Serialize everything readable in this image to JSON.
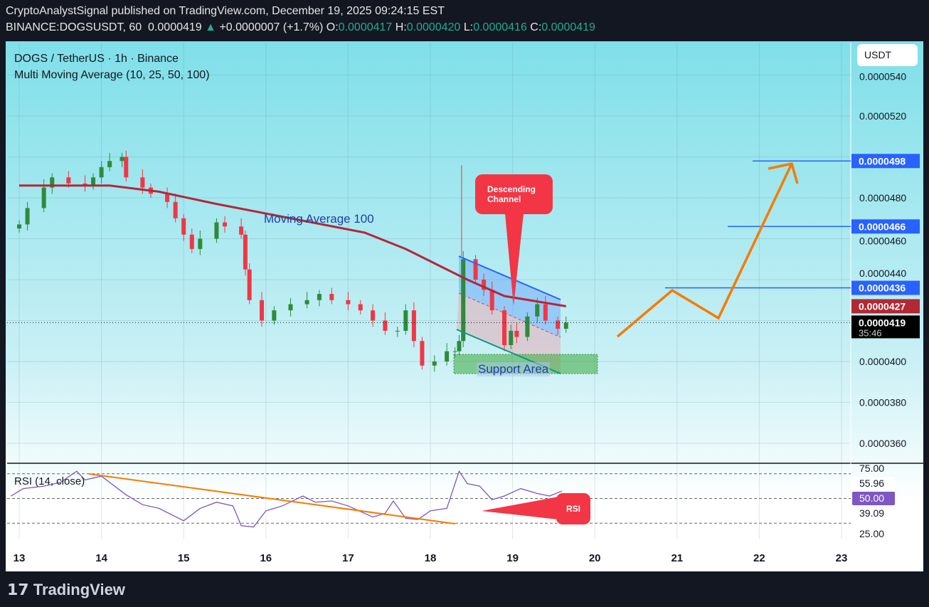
{
  "header": {
    "publisher": "CryptoAnalystSignal published on TradingView.com, December 19, 2025 09:24:15 EST",
    "symbol": "BINANCE:DOGSUSDT, 60",
    "last": "0.0000419",
    "change": "+0.0000007 (+1.7%)",
    "o_label": "O:",
    "o": "0.0000417",
    "h_label": "H:",
    "h": "0.0000420",
    "l_label": "L:",
    "l": "0.0000416",
    "c_label": "C:",
    "c": "0.0000419"
  },
  "legend": {
    "title": "DOGS / TetherUS · 1h · Binance",
    "indicator": "Multi Moving Average (10, 25, 50, 100)",
    "rsi": "RSI (14, close)"
  },
  "price_axis": {
    "currency": "USDT",
    "ticks": [
      "0.0000540",
      "0.0000520",
      "0.0000480",
      "0.0000460",
      "0.0000440",
      "0.0000400",
      "0.0000380",
      "0.0000360"
    ],
    "tags": [
      {
        "text": "0.0000498",
        "color": "#2962ff"
      },
      {
        "text": "0.0000466",
        "color": "#2962ff"
      },
      {
        "text": "0.0000436",
        "color": "#2962ff"
      },
      {
        "text": "0.0000427",
        "color": "#b22833"
      },
      {
        "text": "0.0000419",
        "color": "#000000"
      }
    ],
    "countdown": "35:46"
  },
  "rsi_axis": {
    "ticks": [
      "75.00",
      "25.00"
    ],
    "tags": [
      "55.96",
      "50.00",
      "39.09"
    ]
  },
  "time_axis": [
    "13",
    "14",
    "15",
    "16",
    "17",
    "18",
    "19",
    "20",
    "21",
    "22",
    "23"
  ],
  "annotations": {
    "ma": "Moving Average 100",
    "channel": "Descending Channel",
    "support": "Support Area",
    "rsi": "RSI"
  },
  "colors": {
    "up": "#2e8b3a",
    "down": "#f23645",
    "ma": "#b2283a",
    "projection": "#f57c00",
    "level": "#2962ff",
    "rsi": "#7e57c2"
  },
  "chart_data": {
    "type": "candlestick",
    "closes": [
      467,
      475,
      485,
      490,
      487,
      486,
      490,
      495,
      498,
      500,
      490,
      485,
      482,
      478,
      470,
      462,
      455,
      460,
      468,
      466,
      462,
      445,
      430,
      420,
      425,
      428,
      430,
      433,
      430,
      428,
      425,
      420,
      415,
      415,
      425,
      410,
      398,
      400,
      405,
      405,
      410,
      450,
      440,
      435,
      425,
      408,
      415,
      412,
      422,
      428,
      420,
      416,
      419
    ],
    "close_x_days": [
      13,
      13.1,
      13.3,
      13.4,
      13.6,
      13.8,
      13.9,
      14.0,
      14.1,
      14.25,
      14.3,
      14.5,
      14.6,
      14.8,
      14.9,
      15.0,
      15.1,
      15.2,
      15.4,
      15.5,
      15.7,
      15.75,
      15.8,
      15.95,
      16.1,
      16.3,
      16.5,
      16.65,
      16.8,
      17.0,
      17.15,
      17.3,
      17.45,
      17.6,
      17.7,
      17.8,
      17.9,
      18.05,
      18.2,
      18.3,
      18.35,
      18.4,
      18.55,
      18.65,
      18.75,
      18.9,
      18.98,
      19.05,
      19.18,
      19.3,
      19.4,
      19.55,
      19.65
    ],
    "ma100": [
      [
        13,
        486
      ],
      [
        14.1,
        486
      ],
      [
        14.7,
        483
      ],
      [
        15.4,
        477
      ],
      [
        16.3,
        470
      ],
      [
        17.2,
        463
      ],
      [
        17.7,
        455
      ],
      [
        18.2,
        445
      ],
      [
        18.45,
        440
      ],
      [
        18.9,
        432
      ],
      [
        19.65,
        427
      ]
    ],
    "rsi": [
      [
        12.9,
        52
      ],
      [
        13.05,
        58
      ],
      [
        13.3,
        60
      ],
      [
        13.5,
        63
      ],
      [
        13.7,
        72
      ],
      [
        13.8,
        65
      ],
      [
        14.0,
        68
      ],
      [
        14.3,
        53
      ],
      [
        14.5,
        45
      ],
      [
        14.7,
        42
      ],
      [
        15.0,
        32
      ],
      [
        15.2,
        42
      ],
      [
        15.4,
        47
      ],
      [
        15.6,
        44
      ],
      [
        15.7,
        28
      ],
      [
        15.85,
        27
      ],
      [
        16.0,
        40
      ],
      [
        16.2,
        44
      ],
      [
        16.45,
        52
      ],
      [
        16.6,
        47
      ],
      [
        16.8,
        48
      ],
      [
        17.0,
        44
      ],
      [
        17.3,
        35
      ],
      [
        17.45,
        38
      ],
      [
        17.55,
        48
      ],
      [
        17.7,
        34
      ],
      [
        17.85,
        33
      ],
      [
        18.0,
        40
      ],
      [
        18.2,
        42
      ],
      [
        18.35,
        72
      ],
      [
        18.45,
        62
      ],
      [
        18.6,
        60
      ],
      [
        18.75,
        49
      ],
      [
        18.9,
        52
      ],
      [
        19.1,
        58
      ],
      [
        19.3,
        54
      ],
      [
        19.45,
        52
      ],
      [
        19.6,
        56
      ]
    ],
    "rsi_levels": [
      70,
      50,
      30
    ],
    "ylim": [
      3.5e-05,
      5.45e-05
    ]
  }
}
